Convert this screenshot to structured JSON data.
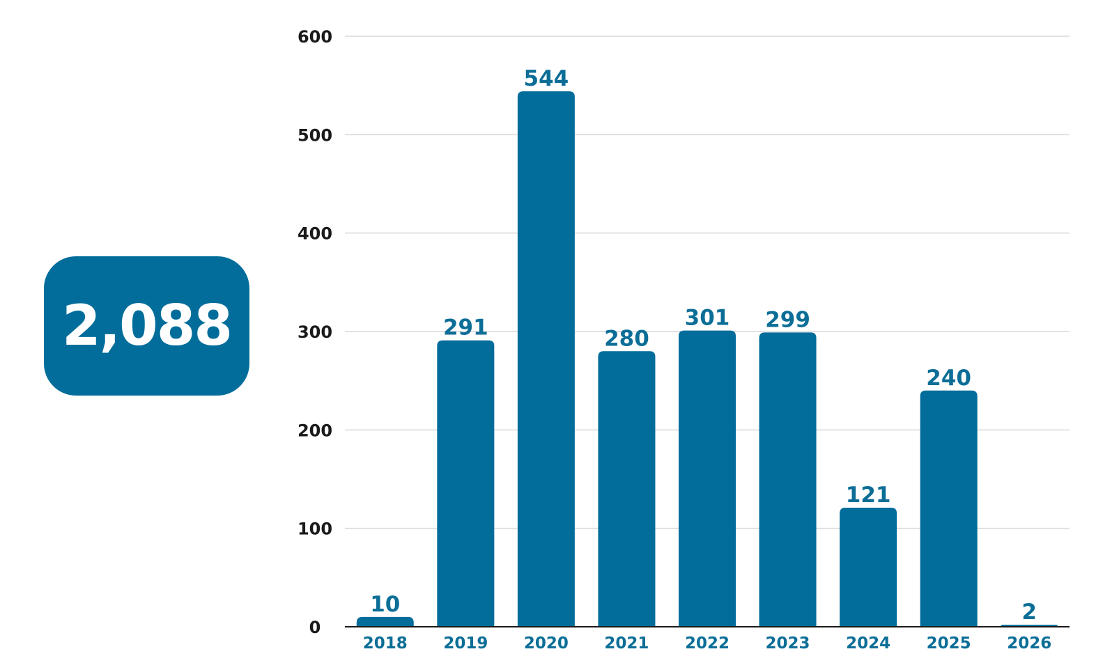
{
  "summary": {
    "total": "2,088"
  },
  "colors": {
    "bar": "#026d9a",
    "badge": "#026d9a",
    "label": "#0c6e97",
    "grid": "#d9d9d9",
    "axis": "#1a1a1a"
  },
  "chart_data": {
    "type": "bar",
    "categories": [
      "2018",
      "2019",
      "2020",
      "2021",
      "2022",
      "2023",
      "2024",
      "2025",
      "2026"
    ],
    "values": [
      10,
      291,
      544,
      280,
      301,
      299,
      121,
      240,
      2
    ],
    "yticks": [
      "0",
      "100",
      "200",
      "300",
      "400",
      "500",
      "600"
    ],
    "ylim": [
      0,
      600
    ],
    "grid": true,
    "data_labels": true,
    "legend": "none"
  }
}
